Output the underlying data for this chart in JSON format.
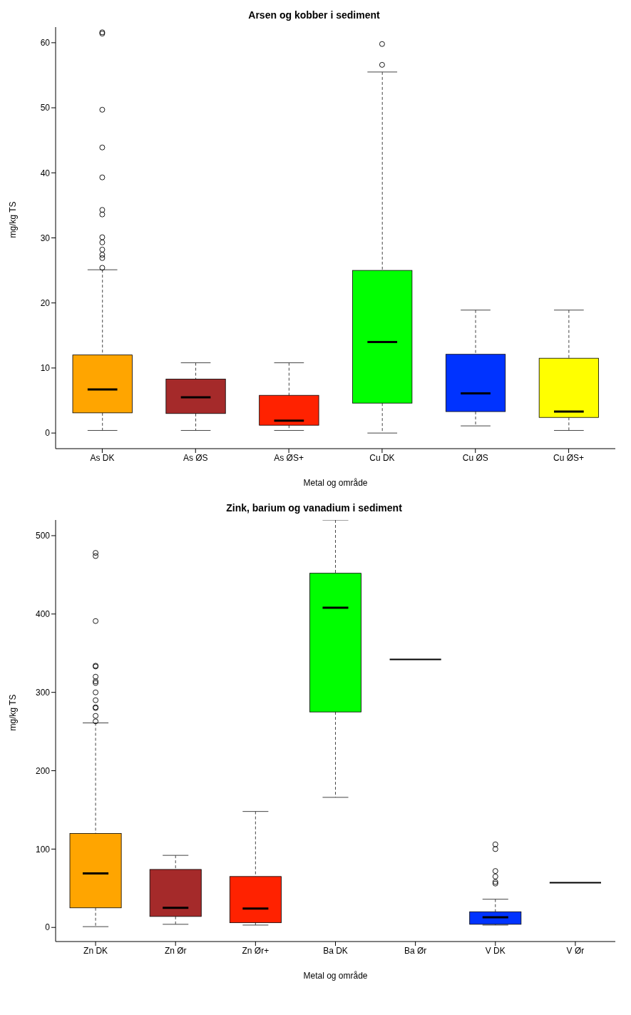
{
  "chart_data": [
    {
      "type": "box",
      "title": "Arsen og kobber i sediment",
      "xlabel": "Metal og område",
      "ylabel": "mg/kg TS",
      "categories": [
        "As DK",
        "As ØS",
        "As ØS+",
        "Cu DK",
        "Cu ØS",
        "Cu ØS+"
      ],
      "colors": [
        "#ffa500",
        "#a52a2a",
        "#ff2200",
        "#00ff00",
        "#0033ff",
        "#ffff00"
      ],
      "boxes": [
        {
          "low": 0.4,
          "q1": 3.1,
          "median": 6.7,
          "q3": 12.0,
          "high": 25.1,
          "outliers": [
            25.4,
            26.9,
            27.4,
            28.2,
            29.3,
            30.1,
            33.6,
            34.3,
            39.3,
            43.9,
            49.7,
            61.4,
            61.6
          ]
        },
        {
          "low": 0.4,
          "q1": 3.0,
          "median": 5.5,
          "q3": 8.3,
          "high": 10.8
        },
        {
          "low": 0.4,
          "q1": 1.2,
          "median": 1.9,
          "q3": 5.8,
          "high": 10.8
        },
        {
          "low": 0,
          "q1": 4.6,
          "median": 14.0,
          "q3": 25.0,
          "high": 55.5,
          "outliers": [
            56.6,
            59.8
          ]
        },
        {
          "low": 1.1,
          "q1": 3.3,
          "median": 6.1,
          "q3": 12.1,
          "high": 18.9
        },
        {
          "low": 0.4,
          "q1": 2.4,
          "median": 3.3,
          "q3": 11.5,
          "high": 18.9
        }
      ],
      "ylim": [
        -2.4,
        62.4
      ],
      "yticks": [
        0,
        10,
        20,
        30,
        40,
        50,
        60
      ],
      "grid": false,
      "legend": false
    },
    {
      "type": "box",
      "title": "Zink, barium og vanadium i sediment",
      "xlabel": "Metal og område",
      "ylabel": "mg/kg TS",
      "categories": [
        "Zn DK",
        "Zn Ør",
        "Zn Ør+",
        "Ba DK",
        "Ba Ør",
        "V DK",
        "V Ør"
      ],
      "colors": [
        "#ffa500",
        "#a52a2a",
        "#ff2200",
        "#00ff00",
        "#000000",
        "#0033ff",
        "#000000"
      ],
      "boxes": [
        {
          "low": 1,
          "q1": 25,
          "median": 69,
          "q3": 120,
          "high": 261,
          "outliers": [
            263,
            270,
            280,
            281,
            290,
            300,
            312,
            314,
            320,
            333,
            334,
            391,
            474,
            478
          ]
        },
        {
          "low": 4,
          "q1": 14,
          "median": 25,
          "q3": 74,
          "high": 92
        },
        {
          "low": 3,
          "q1": 6,
          "median": 24,
          "q3": 65,
          "high": 148
        },
        {
          "low": 166,
          "q1": 275,
          "median": 408,
          "q3": 452,
          "high": 520
        },
        {
          "low": 342,
          "q1": 342,
          "median": 342,
          "q3": 342,
          "high": 342
        },
        {
          "low": 3,
          "q1": 4,
          "median": 13,
          "q3": 20,
          "high": 36,
          "outliers": [
            56,
            58,
            65,
            72,
            100,
            106
          ]
        },
        {
          "low": 57,
          "q1": 57,
          "median": 57,
          "q3": 57,
          "high": 57
        }
      ],
      "ylim": [
        -18,
        520
      ],
      "yticks": [
        0,
        100,
        200,
        300,
        400,
        500
      ],
      "grid": false,
      "legend": false
    }
  ]
}
